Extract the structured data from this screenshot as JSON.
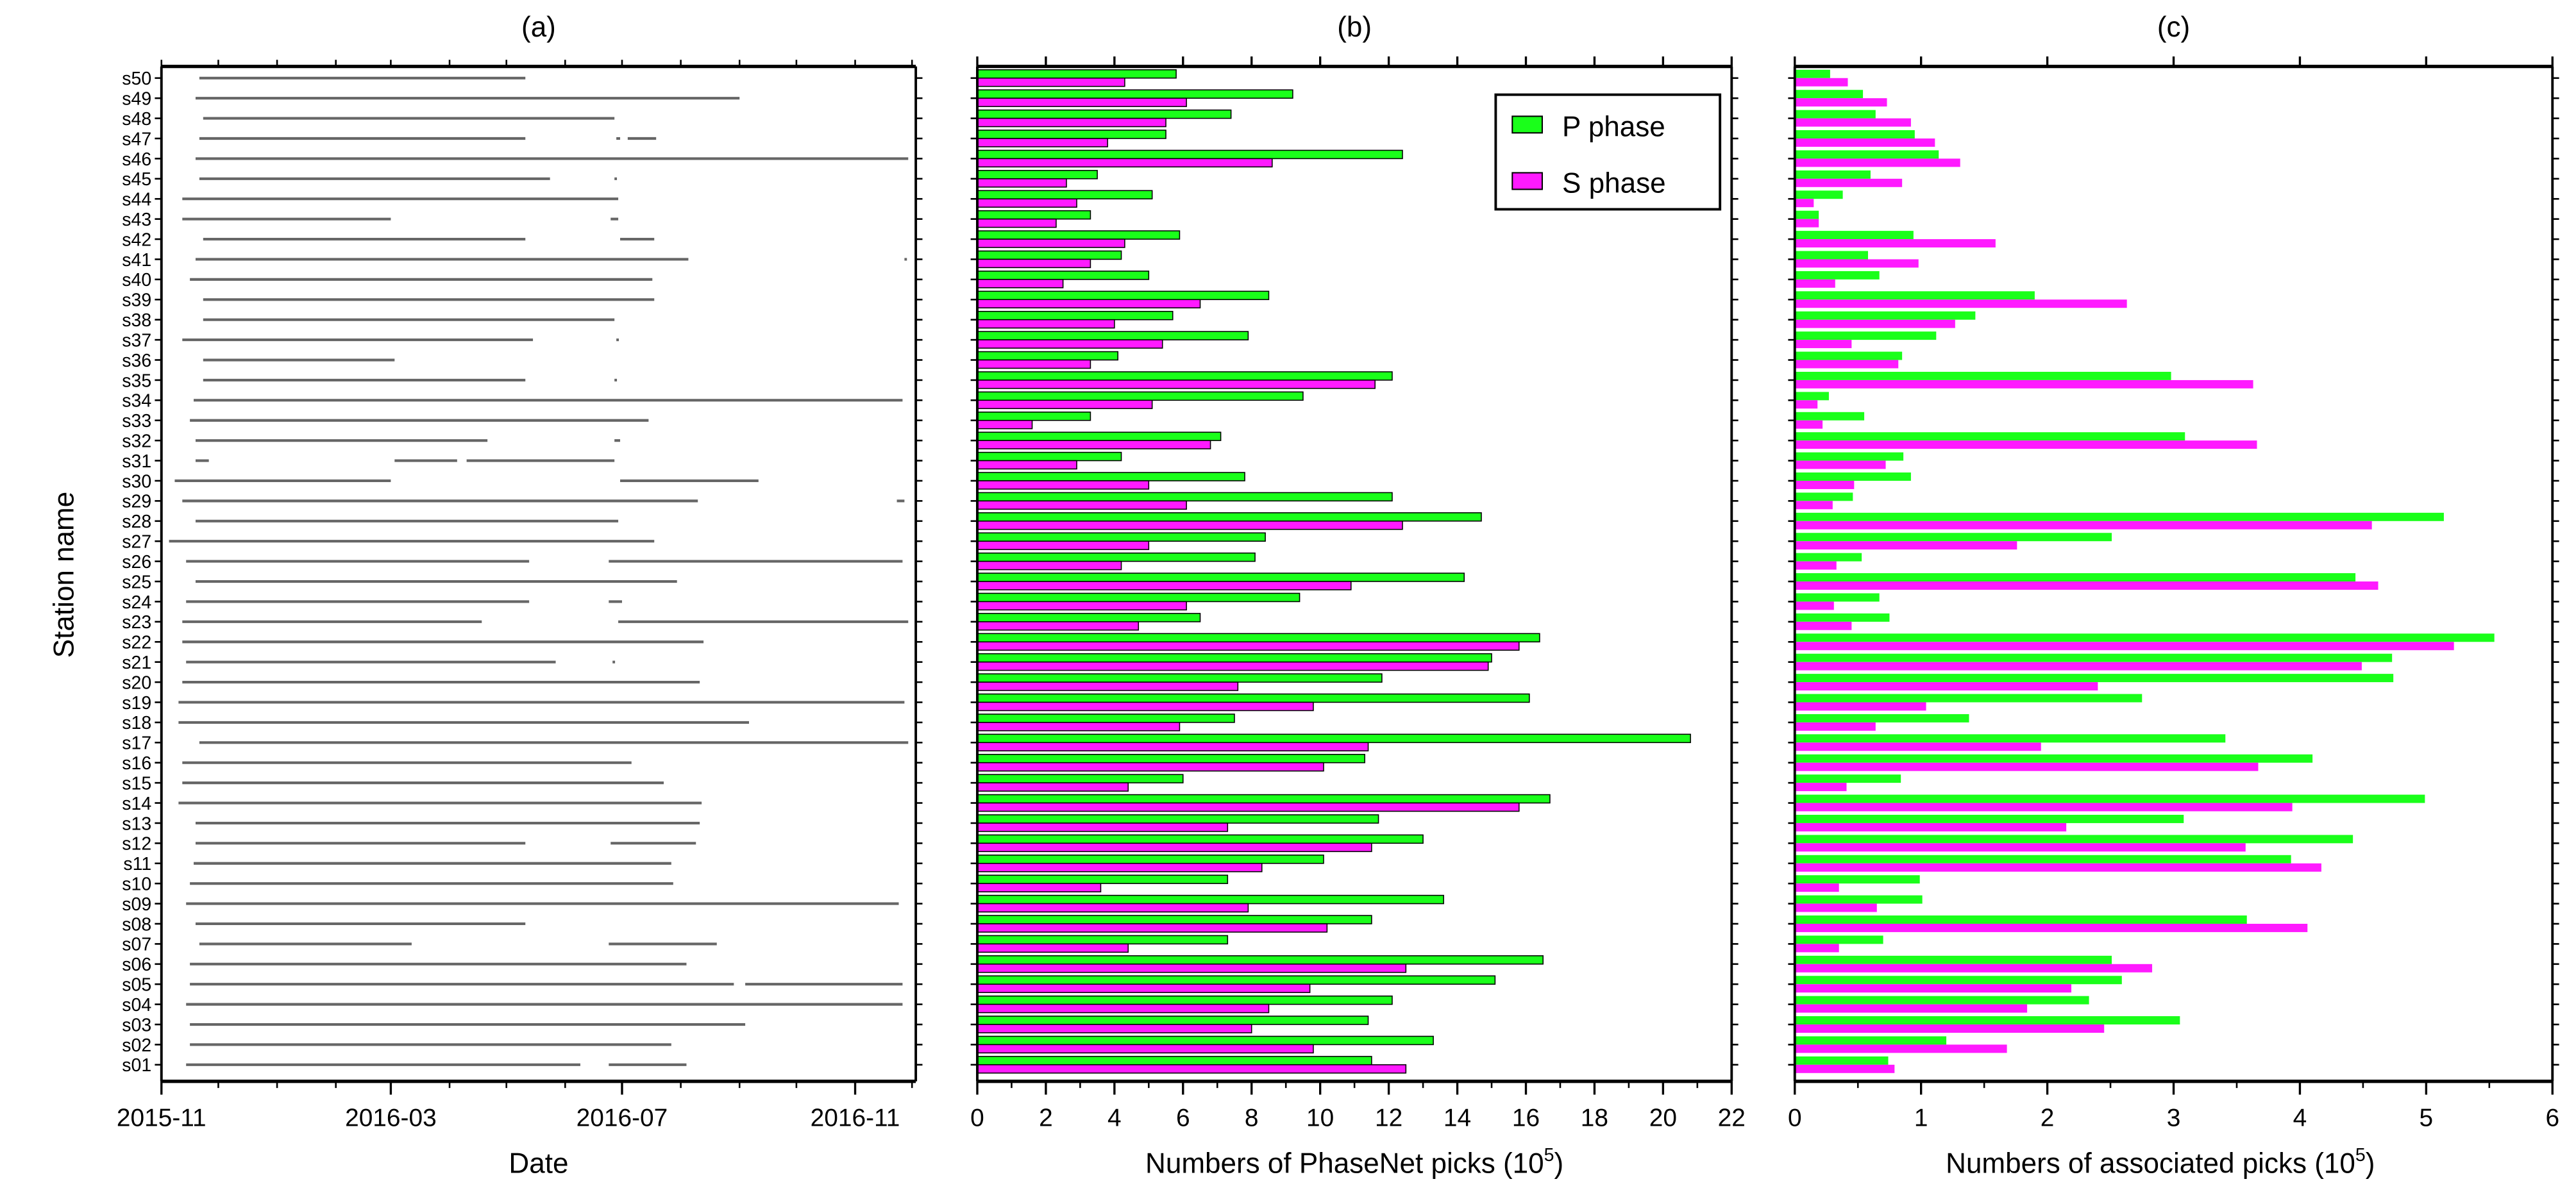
{
  "chart_data": [
    {
      "type": "bar",
      "orientation": "horizontal",
      "title": "(a)",
      "xlabel": "Date",
      "ylabel": "Station name",
      "xlim": [
        "2015-11-01",
        "2016-12-03"
      ],
      "xticks": [
        "2015-11",
        "2016-03",
        "2016-07",
        "2016-11"
      ],
      "segment_color": "#666666",
      "categories": [
        "s01",
        "s02",
        "s03",
        "s04",
        "s05",
        "s06",
        "s07",
        "s08",
        "s09",
        "s10",
        "s11",
        "s12",
        "s13",
        "s14",
        "s15",
        "s16",
        "s17",
        "s18",
        "s19",
        "s20",
        "s21",
        "s22",
        "s23",
        "s24",
        "s25",
        "s26",
        "s27",
        "s28",
        "s29",
        "s30",
        "s31",
        "s32",
        "s33",
        "s34",
        "s35",
        "s36",
        "s37",
        "s38",
        "s39",
        "s40",
        "s41",
        "s42",
        "s43",
        "s44",
        "s45",
        "s46",
        "s47",
        "s48",
        "s49",
        "s50"
      ],
      "segments": [
        [
          [
            "2015-11-14",
            "2016-06-09"
          ],
          [
            "2016-06-24",
            "2016-08-04"
          ]
        ],
        [
          [
            "2015-11-16",
            "2016-07-27"
          ]
        ],
        [
          [
            "2015-11-16",
            "2016-09-04"
          ]
        ],
        [
          [
            "2015-11-14",
            "2016-11-26"
          ]
        ],
        [
          [
            "2015-11-16",
            "2016-08-29"
          ],
          [
            "2016-09-04",
            "2016-11-26"
          ]
        ],
        [
          [
            "2015-11-16",
            "2016-08-04"
          ]
        ],
        [
          [
            "2015-11-21",
            "2016-03-12"
          ],
          [
            "2016-06-24",
            "2016-08-20"
          ]
        ],
        [
          [
            "2015-11-19",
            "2016-05-11"
          ]
        ],
        [
          [
            "2015-11-14",
            "2016-11-24"
          ]
        ],
        [
          [
            "2015-11-16",
            "2016-07-28"
          ]
        ],
        [
          [
            "2015-11-18",
            "2016-07-27"
          ]
        ],
        [
          [
            "2015-11-19",
            "2016-05-11"
          ],
          [
            "2016-06-25",
            "2016-08-09"
          ]
        ],
        [
          [
            "2015-11-19",
            "2016-08-11"
          ]
        ],
        [
          [
            "2015-11-10",
            "2016-08-12"
          ]
        ],
        [
          [
            "2015-11-12",
            "2016-07-23"
          ]
        ],
        [
          [
            "2015-11-12",
            "2016-07-06"
          ]
        ],
        [
          [
            "2015-11-21",
            "2016-11-29"
          ]
        ],
        [
          [
            "2015-11-10",
            "2016-09-06"
          ]
        ],
        [
          [
            "2015-11-10",
            "2016-11-27"
          ]
        ],
        [
          [
            "2015-11-12",
            "2016-08-11"
          ]
        ],
        [
          [
            "2015-11-14",
            "2016-05-27"
          ],
          [
            "2016-06-26",
            "2016-06-27"
          ]
        ],
        [
          [
            "2015-11-12",
            "2016-08-13"
          ]
        ],
        [
          [
            "2015-11-12",
            "2016-04-18"
          ],
          [
            "2016-06-29",
            "2016-11-29"
          ]
        ],
        [
          [
            "2015-11-14",
            "2016-05-13"
          ],
          [
            "2016-06-24",
            "2016-07-01"
          ]
        ],
        [
          [
            "2015-11-19",
            "2016-07-30"
          ]
        ],
        [
          [
            "2015-11-14",
            "2016-05-13"
          ],
          [
            "2016-06-24",
            "2016-11-26"
          ]
        ],
        [
          [
            "2015-11-05",
            "2016-07-18"
          ]
        ],
        [
          [
            "2015-11-19",
            "2016-06-29"
          ]
        ],
        [
          [
            "2015-11-12",
            "2016-08-10"
          ],
          [
            "2016-11-23",
            "2016-11-27"
          ]
        ],
        [
          [
            "2015-11-08",
            "2016-03-01"
          ],
          [
            "2016-06-30",
            "2016-09-11"
          ]
        ],
        [
          [
            "2015-11-19",
            "2015-11-26"
          ],
          [
            "2016-03-03",
            "2016-04-05"
          ],
          [
            "2016-04-10",
            "2016-06-27"
          ]
        ],
        [
          [
            "2015-11-19",
            "2016-04-21"
          ],
          [
            "2016-06-27",
            "2016-06-30"
          ]
        ],
        [
          [
            "2015-11-16",
            "2016-07-15"
          ]
        ],
        [
          [
            "2015-11-18",
            "2016-11-26"
          ]
        ],
        [
          [
            "2015-11-23",
            "2016-05-11"
          ],
          [
            "2016-06-27",
            "2016-06-28"
          ]
        ],
        [
          [
            "2015-11-23",
            "2016-03-03"
          ]
        ],
        [
          [
            "2015-11-12",
            "2016-05-15"
          ],
          [
            "2016-06-28",
            "2016-06-29"
          ]
        ],
        [
          [
            "2015-11-23",
            "2016-06-27"
          ]
        ],
        [
          [
            "2015-11-23",
            "2016-07-18"
          ]
        ],
        [
          [
            "2015-11-16",
            "2016-07-17"
          ]
        ],
        [
          [
            "2015-11-19",
            "2016-08-05"
          ],
          [
            "2016-11-27",
            "2016-11-28"
          ]
        ],
        [
          [
            "2015-11-23",
            "2016-05-11"
          ],
          [
            "2016-06-30",
            "2016-07-18"
          ]
        ],
        [
          [
            "2015-11-12",
            "2016-03-01"
          ],
          [
            "2016-06-25",
            "2016-06-29"
          ]
        ],
        [
          [
            "2015-11-12",
            "2016-06-29"
          ]
        ],
        [
          [
            "2015-11-21",
            "2016-05-24"
          ],
          [
            "2016-06-27",
            "2016-06-28"
          ]
        ],
        [
          [
            "2015-11-19",
            "2016-11-29"
          ]
        ],
        [
          [
            "2015-11-21",
            "2016-05-11"
          ],
          [
            "2016-06-28",
            "2016-06-30"
          ],
          [
            "2016-07-04",
            "2016-07-19"
          ]
        ],
        [
          [
            "2015-11-23",
            "2016-06-27"
          ]
        ],
        [
          [
            "2015-11-19",
            "2016-09-01"
          ]
        ],
        [
          [
            "2015-11-21",
            "2016-05-11"
          ]
        ]
      ]
    },
    {
      "type": "bar",
      "orientation": "horizontal",
      "title": "(b)",
      "xlabel": "Numbers of PhaseNet picks (10",
      "xlabel_sup": "5",
      "xlabel_end": ")",
      "xlim": [
        0,
        22
      ],
      "xticks": [
        0,
        2,
        4,
        6,
        8,
        10,
        12,
        14,
        16,
        18,
        20,
        22
      ],
      "legend": "top-right",
      "categories": [
        "s01",
        "s02",
        "s03",
        "s04",
        "s05",
        "s06",
        "s07",
        "s08",
        "s09",
        "s10",
        "s11",
        "s12",
        "s13",
        "s14",
        "s15",
        "s16",
        "s17",
        "s18",
        "s19",
        "s20",
        "s21",
        "s22",
        "s23",
        "s24",
        "s25",
        "s26",
        "s27",
        "s28",
        "s29",
        "s30",
        "s31",
        "s32",
        "s33",
        "s34",
        "s35",
        "s36",
        "s37",
        "s38",
        "s39",
        "s40",
        "s41",
        "s42",
        "s43",
        "s44",
        "s45",
        "s46",
        "s47",
        "s48",
        "s49",
        "s50"
      ],
      "series": [
        {
          "name": "P phase",
          "color": "#1aff1a",
          "values": [
            11.5,
            13.3,
            11.4,
            12.1,
            15.1,
            16.5,
            7.3,
            11.5,
            13.6,
            7.3,
            10.1,
            13.0,
            11.7,
            16.7,
            6.0,
            11.3,
            20.8,
            7.5,
            16.1,
            11.8,
            15.0,
            16.4,
            6.5,
            9.4,
            14.2,
            8.1,
            8.4,
            14.7,
            12.1,
            7.8,
            4.2,
            7.1,
            3.3,
            9.5,
            12.1,
            4.1,
            7.9,
            5.7,
            8.5,
            5.0,
            4.2,
            5.9,
            3.3,
            5.1,
            3.5,
            12.4,
            5.5,
            7.4,
            9.2,
            5.8
          ]
        },
        {
          "name": "S phase",
          "color": "#ff1aff",
          "values": [
            12.5,
            9.8,
            8.0,
            8.5,
            9.7,
            12.5,
            4.4,
            10.2,
            7.9,
            3.6,
            8.3,
            11.5,
            7.3,
            15.8,
            4.4,
            10.1,
            11.4,
            5.9,
            9.8,
            7.6,
            14.9,
            15.8,
            4.7,
            6.1,
            10.9,
            4.2,
            5.0,
            12.4,
            6.1,
            5.0,
            2.9,
            6.8,
            1.6,
            5.1,
            11.6,
            3.3,
            5.4,
            4.0,
            6.5,
            2.5,
            3.3,
            4.3,
            2.3,
            2.9,
            2.6,
            8.6,
            3.8,
            5.5,
            6.1,
            4.3
          ]
        }
      ]
    },
    {
      "type": "bar",
      "orientation": "horizontal",
      "title": "(c)",
      "xlabel": "Numbers of associated picks (10",
      "xlabel_sup": "5",
      "xlabel_end": ")",
      "xlim": [
        0,
        6
      ],
      "xticks": [
        0,
        1,
        2,
        3,
        4,
        5,
        6
      ],
      "categories": [
        "s01",
        "s02",
        "s03",
        "s04",
        "s05",
        "s06",
        "s07",
        "s08",
        "s09",
        "s10",
        "s11",
        "s12",
        "s13",
        "s14",
        "s15",
        "s16",
        "s17",
        "s18",
        "s19",
        "s20",
        "s21",
        "s22",
        "s23",
        "s24",
        "s25",
        "s26",
        "s27",
        "s28",
        "s29",
        "s30",
        "s31",
        "s32",
        "s33",
        "s34",
        "s35",
        "s36",
        "s37",
        "s38",
        "s39",
        "s40",
        "s41",
        "s42",
        "s43",
        "s44",
        "s45",
        "s46",
        "s47",
        "s48",
        "s49",
        "s50"
      ],
      "series": [
        {
          "color": "#1aff1a",
          "values": [
            0.74,
            1.2,
            3.05,
            2.33,
            2.59,
            2.51,
            0.7,
            3.58,
            1.01,
            0.99,
            3.93,
            4.42,
            3.08,
            4.99,
            0.84,
            4.1,
            3.41,
            1.38,
            2.75,
            4.74,
            4.73,
            5.54,
            0.75,
            0.67,
            4.44,
            0.53,
            2.51,
            5.14,
            0.46,
            0.92,
            0.86,
            3.09,
            0.55,
            0.27,
            2.98,
            0.85,
            1.12,
            1.43,
            1.9,
            0.67,
            0.58,
            0.94,
            0.19,
            0.38,
            0.6,
            1.14,
            0.95,
            0.64,
            0.54,
            0.28
          ]
        },
        {
          "color": "#ff1aff",
          "values": [
            0.79,
            1.68,
            2.45,
            1.84,
            2.19,
            2.83,
            0.35,
            4.06,
            0.65,
            0.35,
            4.17,
            3.57,
            2.15,
            3.94,
            0.41,
            3.67,
            1.95,
            0.64,
            1.04,
            2.4,
            4.49,
            5.22,
            0.45,
            0.31,
            4.62,
            0.33,
            1.76,
            4.57,
            0.3,
            0.47,
            0.72,
            3.66,
            0.22,
            0.18,
            3.63,
            0.82,
            0.45,
            1.27,
            2.63,
            0.32,
            0.98,
            1.59,
            0.19,
            0.15,
            0.85,
            1.31,
            1.11,
            0.92,
            0.73,
            0.42
          ]
        }
      ]
    }
  ]
}
